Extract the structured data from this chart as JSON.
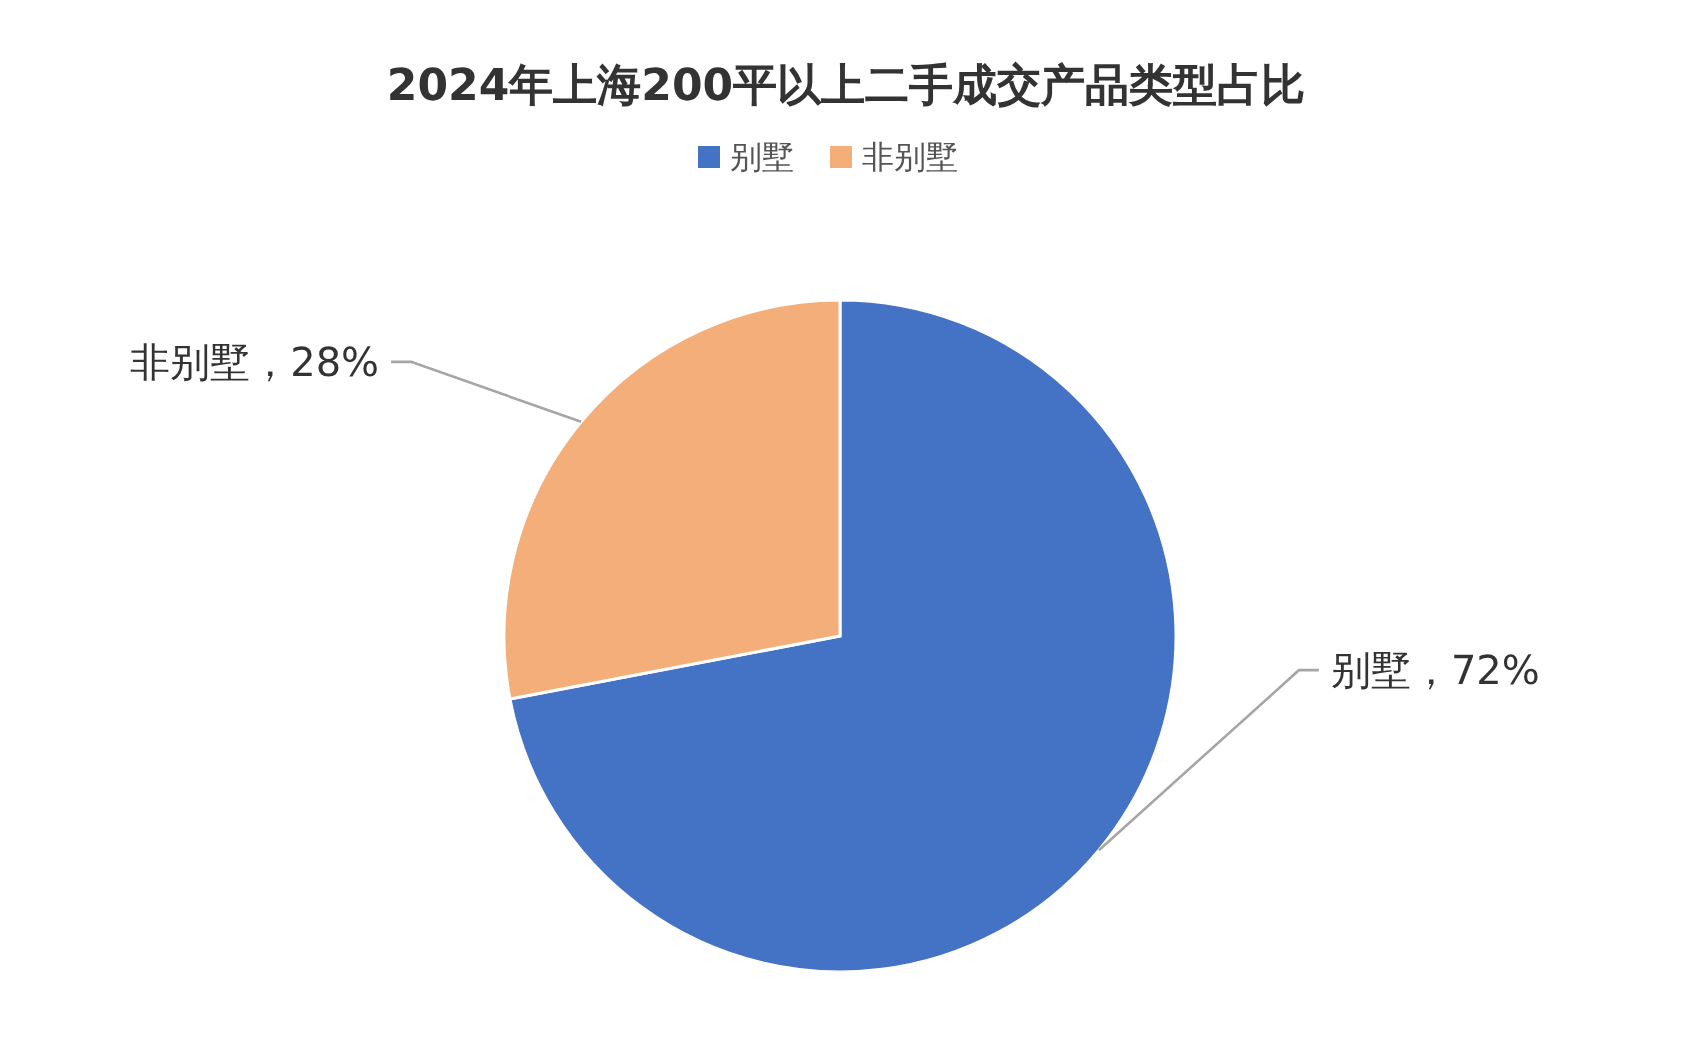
{
  "chart_data": {
    "type": "pie",
    "title": "2024年上海200平以上二手成交产品类型占比",
    "categories": [
      "别墅",
      "非别墅"
    ],
    "values": [
      72,
      28
    ],
    "colors": [
      "#4472c4",
      "#f4ae7a"
    ],
    "value_labels": [
      "别墅，72%",
      "非别墅，28%"
    ],
    "legend": "top"
  }
}
